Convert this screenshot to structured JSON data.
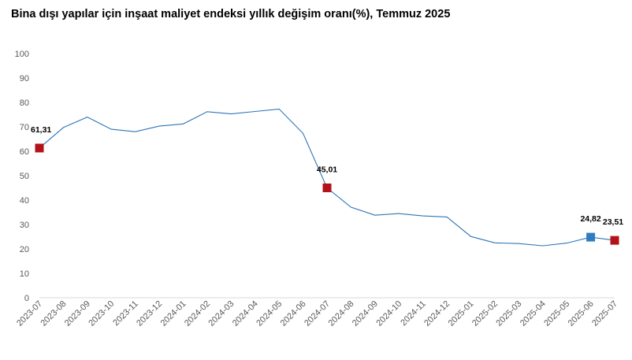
{
  "title": "Bina dışı yapılar için inşaat maliyet endeksi yıllık değişim oranı(%), Temmuz 2025",
  "chart_data": {
    "type": "line",
    "title": "Bina dışı yapılar için inşaat maliyet endeksi yıllık değişim oranı(%), Temmuz 2025",
    "xlabel": "",
    "ylabel": "",
    "ylim": [
      0,
      100
    ],
    "yticks": [
      0,
      10,
      20,
      30,
      40,
      50,
      60,
      70,
      80,
      90,
      100
    ],
    "grid": false,
    "legend": "none",
    "categories": [
      "2023-07",
      "2023-08",
      "2023-09",
      "2023-10",
      "2023-11",
      "2023-12",
      "2024-01",
      "2024-02",
      "2024-03",
      "2024-04",
      "2024-05",
      "2024-06",
      "2024-07",
      "2024-08",
      "2024-09",
      "2024-10",
      "2024-11",
      "2024-12",
      "2025-01",
      "2025-02",
      "2025-03",
      "2025-04",
      "2025-05",
      "2025-06",
      "2025-07"
    ],
    "series": [
      {
        "values": [
          61.31,
          69.7,
          74.0,
          69.0,
          68.0,
          70.3,
          71.2,
          76.2,
          75.3,
          76.3,
          77.3,
          67.3,
          45.01,
          37.1,
          33.8,
          34.5,
          33.5,
          33.1,
          25.1,
          22.5,
          22.2,
          21.3,
          22.4,
          24.82,
          23.51
        ],
        "line_color": "#2e75b6"
      }
    ],
    "highlighted_points": [
      {
        "index": 0,
        "label": "61,31",
        "color": "#b3121a"
      },
      {
        "index": 12,
        "label": "45,01",
        "color": "#b3121a"
      },
      {
        "index": 23,
        "label": "24,82",
        "color": "#2f7dc0"
      },
      {
        "index": 24,
        "label": "23,51",
        "color": "#b3121a"
      }
    ]
  }
}
